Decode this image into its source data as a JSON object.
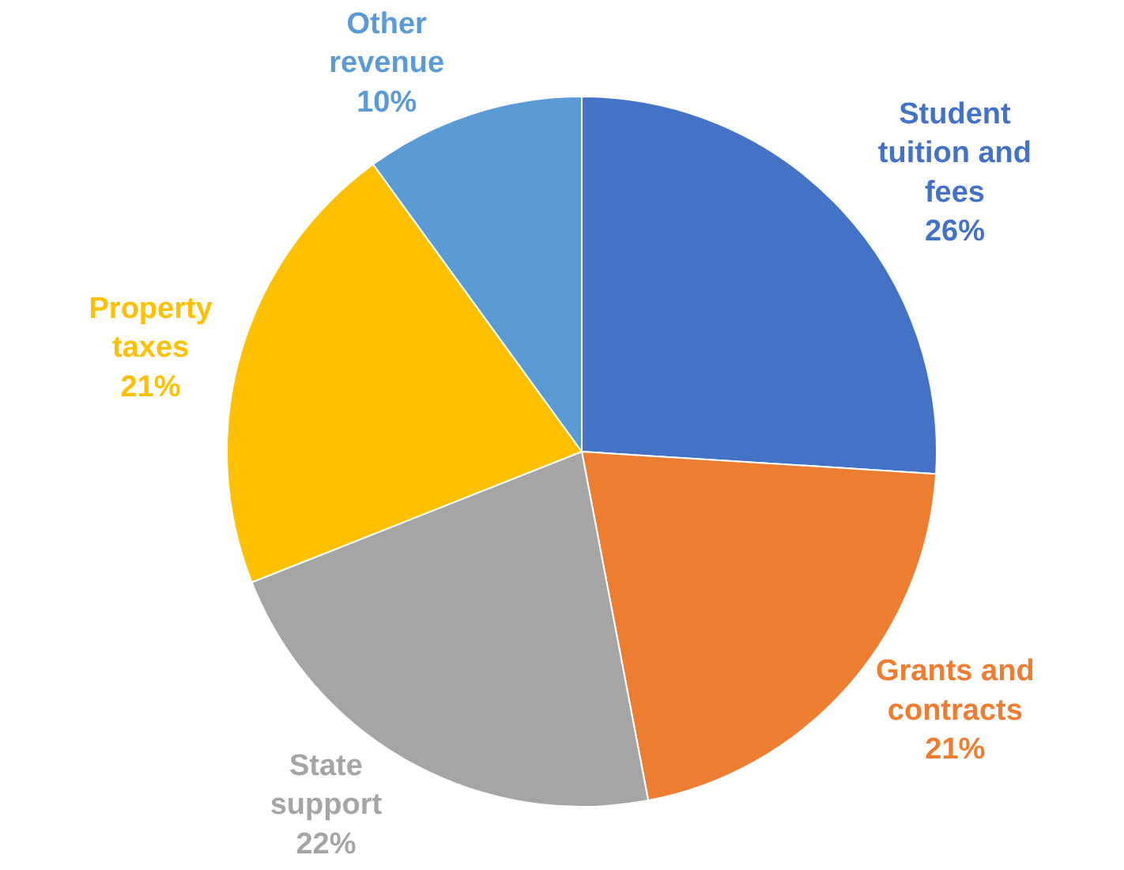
{
  "chart_data": {
    "type": "pie",
    "categories": [
      "Student tuition and fees",
      "Grants and contracts",
      "State support",
      "Property taxes",
      "Other revenue"
    ],
    "values": [
      26,
      21,
      22,
      21,
      10
    ],
    "value_labels": [
      "26%",
      "21%",
      "22%",
      "21%",
      "10%"
    ],
    "colors": [
      "#4472c4",
      "#ed7d31",
      "#a5a5a5",
      "#ffc000",
      "#5b9bd5"
    ],
    "legend": false
  }
}
